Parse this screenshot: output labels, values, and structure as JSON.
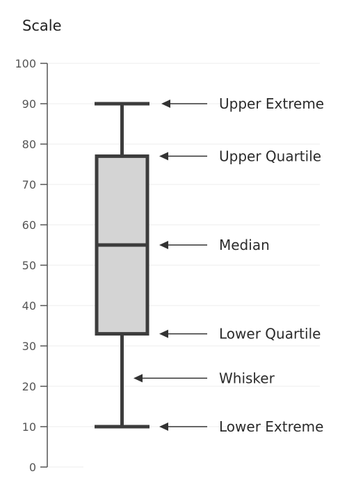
{
  "chart_data": {
    "type": "boxplot",
    "title": "Scale",
    "ylim": [
      0,
      100
    ],
    "yticks": [
      0,
      10,
      20,
      30,
      40,
      50,
      60,
      70,
      80,
      90,
      100
    ],
    "grid": true,
    "box": {
      "lower_extreme": 10,
      "lower_quartile": 33,
      "median": 55,
      "upper_quartile": 77,
      "upper_extreme": 90
    },
    "annotations": [
      {
        "label": "Upper Extreme",
        "value": 90
      },
      {
        "label": "Upper Quartile",
        "value": 77
      },
      {
        "label": "Median",
        "value": 55
      },
      {
        "label": "Lower Quartile",
        "value": 33
      },
      {
        "label": "Whisker",
        "value": 22
      },
      {
        "label": "Lower Extreme",
        "value": 10
      }
    ],
    "colors": {
      "box_fill": "#d4d4d4",
      "box_stroke": "#3c3c3c",
      "grid": "#eeeeee",
      "axis": "#555555",
      "arrow": "#333333"
    }
  }
}
